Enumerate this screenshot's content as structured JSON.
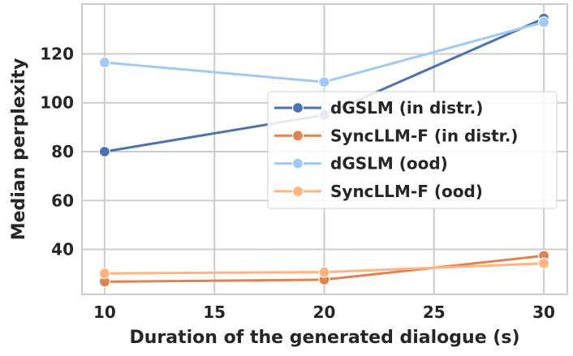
{
  "chart_data": {
    "type": "line",
    "title": "",
    "xlabel": "Duration of the generated dialogue (s)",
    "ylabel": "Median perplexity",
    "x": [
      10,
      20,
      30
    ],
    "xlim": [
      8.97,
      31.07
    ],
    "ylim": [
      21.6,
      140.4
    ],
    "xticks": [
      "10",
      "15",
      "20",
      "25",
      "30"
    ],
    "yticks": [
      "40",
      "60",
      "80",
      "100",
      "120"
    ],
    "grid": true,
    "legend_position": "center-right",
    "series": [
      {
        "name": "dGSLM (in distr.)",
        "color": "#4c72b0",
        "values": [
          80,
          95,
          134.5
        ]
      },
      {
        "name": "SyncLLM-F (in distr.)",
        "color": "#dd8452",
        "values": [
          26.8,
          27.6,
          37.4
        ]
      },
      {
        "name": "dGSLM (ood)",
        "color": "#a1c9f4",
        "values": [
          116.5,
          108.5,
          133
        ]
      },
      {
        "name": "SyncLLM-F (ood)",
        "color": "#ffb482",
        "values": [
          30.2,
          30.7,
          34.3
        ]
      }
    ]
  }
}
